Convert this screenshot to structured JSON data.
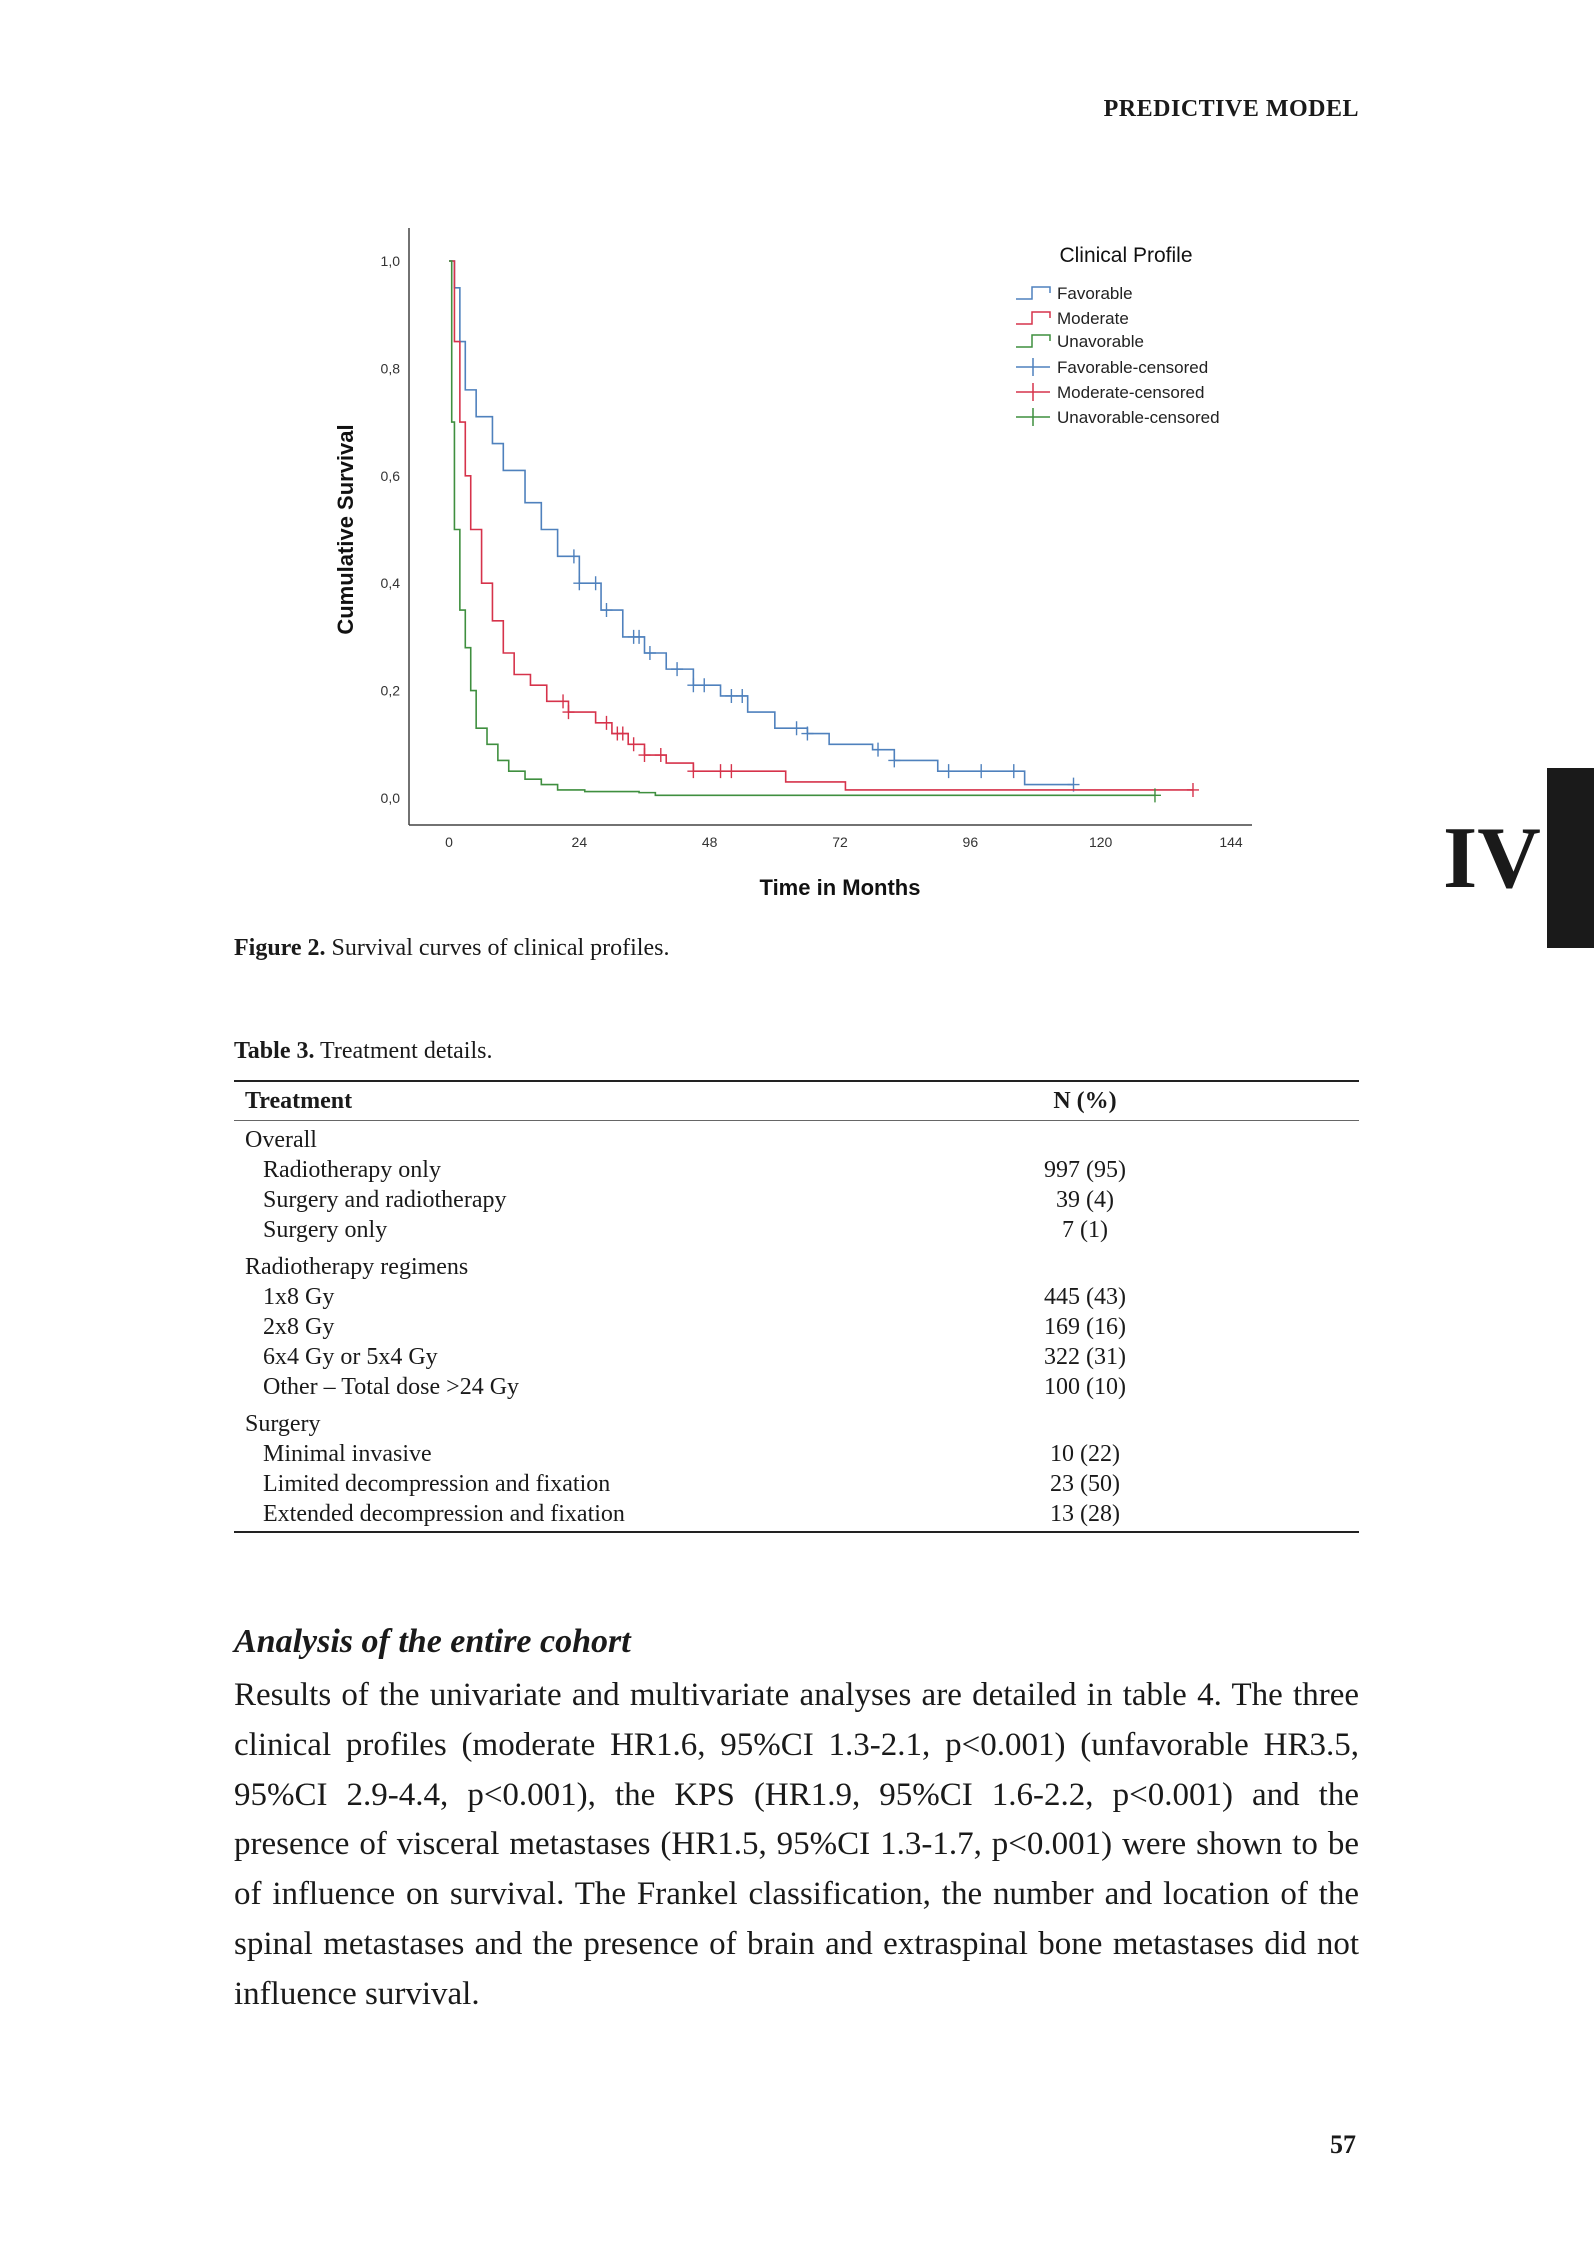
{
  "running_head": "PREDICTIVE MODEL",
  "chapter_label": "IV",
  "page_number": "57",
  "figure": {
    "label": "Figure 2.",
    "caption": " Survival curves of clinical profiles."
  },
  "chart_data": {
    "type": "line",
    "title": "",
    "xlabel": "Time in Months",
    "ylabel": "Cumulative Survival",
    "xlim": [
      0,
      144
    ],
    "ylim": [
      0,
      1
    ],
    "xticks": [
      "0",
      "24",
      "48",
      "72",
      "96",
      "120",
      "144"
    ],
    "xtick_values": [
      0,
      24,
      48,
      72,
      96,
      120,
      144
    ],
    "yticks": [
      "0,0",
      "0,2",
      "0,4",
      "0,6",
      "0,8",
      "1,0"
    ],
    "ytick_values": [
      0,
      0.2,
      0.4,
      0.6,
      0.8,
      1.0
    ],
    "grid": false,
    "legend": {
      "title": "Clinical Profile",
      "placement": "top-right",
      "entries": [
        "Favorable",
        "Moderate",
        "Unavorable",
        "Favorable-censored",
        "Moderate-censored",
        "Unavorable-censored"
      ]
    },
    "series": [
      {
        "name": "Favorable",
        "color": "#4f81bd",
        "points": [
          [
            0,
            1
          ],
          [
            1,
            0.95
          ],
          [
            2,
            0.85
          ],
          [
            3,
            0.76
          ],
          [
            5,
            0.71
          ],
          [
            8,
            0.66
          ],
          [
            10,
            0.61
          ],
          [
            14,
            0.55
          ],
          [
            17,
            0.5
          ],
          [
            20,
            0.45
          ],
          [
            24,
            0.4
          ],
          [
            28,
            0.35
          ],
          [
            32,
            0.3
          ],
          [
            36,
            0.27
          ],
          [
            40,
            0.24
          ],
          [
            45,
            0.21
          ],
          [
            50,
            0.19
          ],
          [
            55,
            0.16
          ],
          [
            60,
            0.13
          ],
          [
            66,
            0.12
          ],
          [
            70,
            0.1
          ],
          [
            78,
            0.09
          ],
          [
            82,
            0.07
          ],
          [
            90,
            0.05
          ],
          [
            105,
            0.05
          ],
          [
            106,
            0.025
          ],
          [
            115,
            0.025
          ]
        ],
        "censored": [
          23,
          24,
          27,
          29,
          34,
          35,
          37,
          42,
          45,
          47,
          52,
          54,
          64,
          66,
          79,
          82,
          92,
          98,
          104,
          115
        ]
      },
      {
        "name": "Moderate",
        "color": "#d6334b",
        "points": [
          [
            0,
            1
          ],
          [
            1,
            0.85
          ],
          [
            2,
            0.7
          ],
          [
            3,
            0.6
          ],
          [
            4,
            0.5
          ],
          [
            6,
            0.4
          ],
          [
            8,
            0.33
          ],
          [
            10,
            0.27
          ],
          [
            12,
            0.23
          ],
          [
            15,
            0.21
          ],
          [
            18,
            0.18
          ],
          [
            22,
            0.16
          ],
          [
            27,
            0.14
          ],
          [
            30,
            0.12
          ],
          [
            33,
            0.1
          ],
          [
            36,
            0.08
          ],
          [
            40,
            0.065
          ],
          [
            45,
            0.05
          ],
          [
            60,
            0.05
          ],
          [
            62,
            0.03
          ],
          [
            72,
            0.03
          ],
          [
            73,
            0.015
          ],
          [
            137,
            0.015
          ]
        ],
        "censored": [
          21,
          22,
          29,
          31,
          32,
          34,
          36,
          39,
          45,
          50,
          52,
          137
        ]
      },
      {
        "name": "Unavorable",
        "color": "#3f8f3f",
        "points": [
          [
            0,
            1
          ],
          [
            0.5,
            0.7
          ],
          [
            1,
            0.5
          ],
          [
            2,
            0.35
          ],
          [
            3,
            0.28
          ],
          [
            4,
            0.2
          ],
          [
            5,
            0.13
          ],
          [
            7,
            0.1
          ],
          [
            9,
            0.07
          ],
          [
            11,
            0.05
          ],
          [
            14,
            0.035
          ],
          [
            17,
            0.025
          ],
          [
            20,
            0.015
          ],
          [
            25,
            0.012
          ],
          [
            35,
            0.01
          ],
          [
            38,
            0.005
          ],
          [
            130,
            0.005
          ]
        ],
        "censored": [
          130
        ]
      }
    ]
  },
  "table": {
    "label": "Table 3.",
    "caption": " Treatment details.",
    "headers": [
      "Treatment",
      "N (%)"
    ],
    "groups": [
      {
        "title": "Overall",
        "rows": [
          [
            "Radiotherapy only",
            "997 (95)"
          ],
          [
            "Surgery and radiotherapy",
            "39 (4)"
          ],
          [
            "Surgery only",
            "7 (1)"
          ]
        ]
      },
      {
        "title": "Radiotherapy regimens",
        "rows": [
          [
            "1x8 Gy",
            "445 (43)"
          ],
          [
            "2x8 Gy",
            "169 (16)"
          ],
          [
            "6x4 Gy or 5x4 Gy",
            "322 (31)"
          ],
          [
            "Other – Total dose >24 Gy",
            "100 (10)"
          ]
        ]
      },
      {
        "title": "Surgery",
        "rows": [
          [
            "Minimal invasive",
            "10 (22)"
          ],
          [
            "Limited decompression and fixation",
            "23 (50)"
          ],
          [
            "Extended decompression and fixation",
            "13 (28)"
          ]
        ]
      }
    ]
  },
  "section": {
    "heading": "Analysis of the entire cohort",
    "paragraph": "Results of the univariate and multivariate analyses are detailed in table 4. The three clinical profiles (moderate HR1.6, 95%CI 1.3-2.1, p<0.001) (unfavorable HR3.5, 95%CI 2.9-4.4, p<0.001), the KPS (HR1.9, 95%CI 1.6-2.2, p<0.001) and the presence of visceral metastases (HR1.5, 95%CI 1.3-1.7, p<0.001) were shown to be of influence on survival. The Frankel classification, the number and location of the spinal metastases and the presence of brain and extraspinal bone metastases did not influence survival."
  }
}
